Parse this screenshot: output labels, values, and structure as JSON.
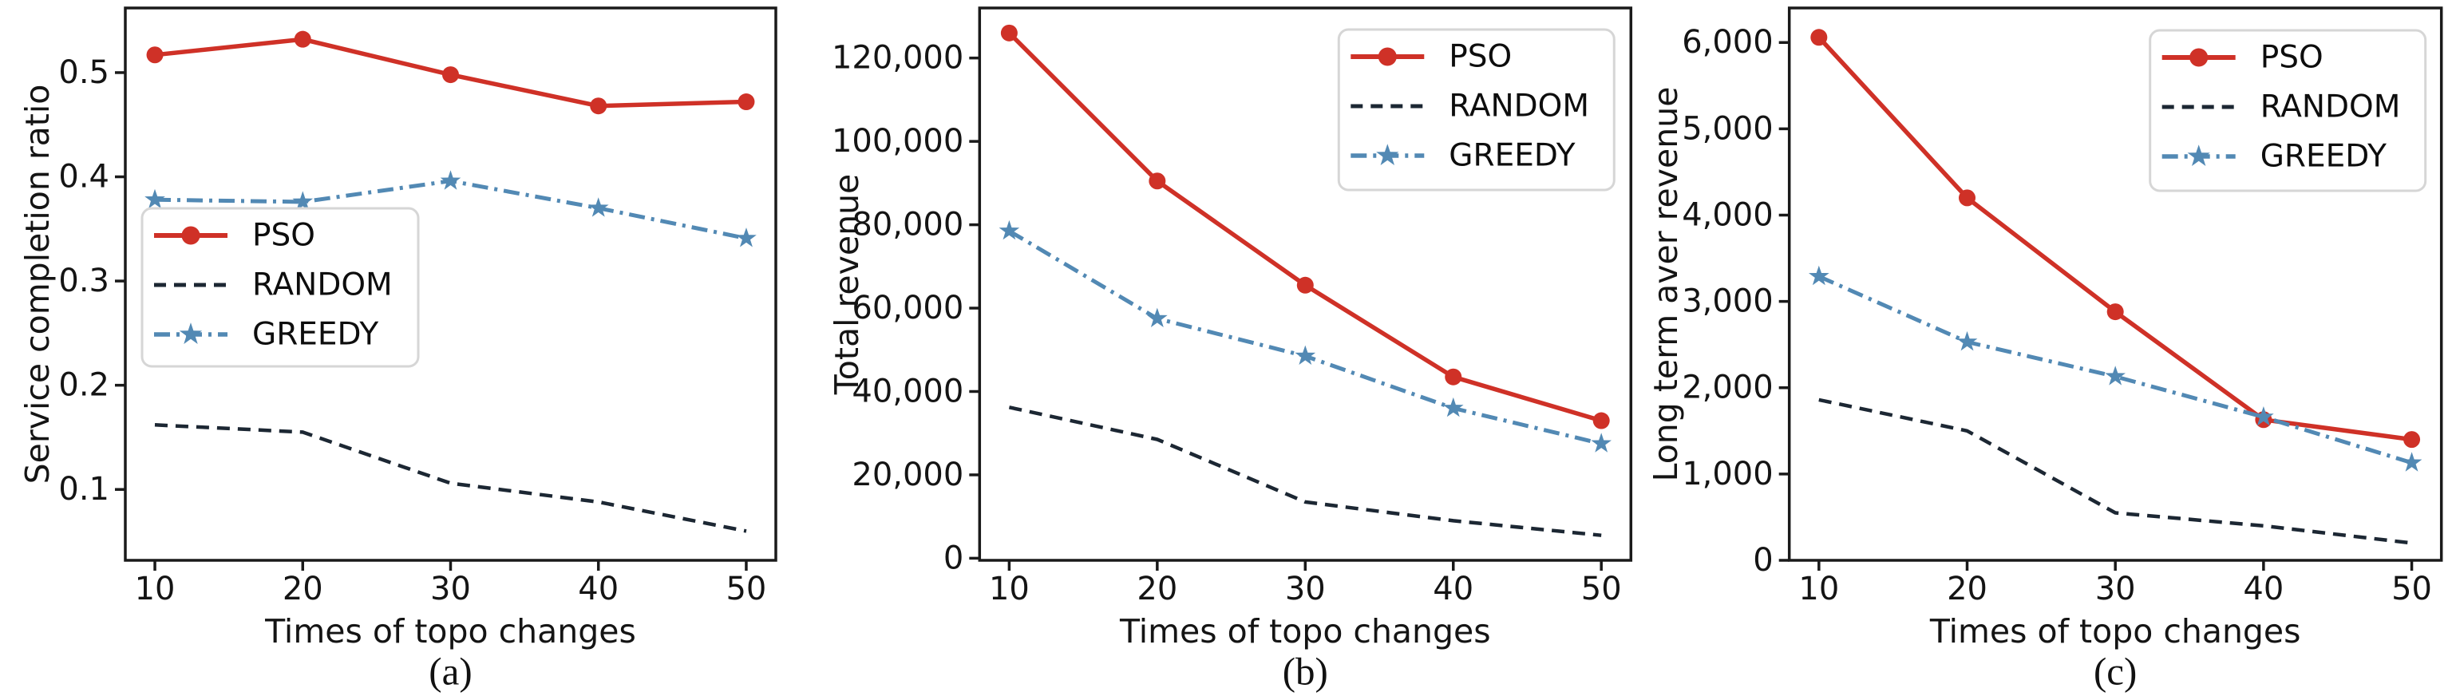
{
  "figure": {
    "xlabel": "Times of topo changes",
    "series_names": [
      "PSO",
      "RANDOM",
      "GREEDY"
    ],
    "colors": {
      "pso": "#cf3127",
      "random": "#1c2733",
      "greedy": "#5289b4",
      "axis": "#1a1a1a",
      "text": "#141414",
      "legend_border": "#d6d6d6",
      "background": "#ffffff"
    }
  },
  "chart_data": [
    {
      "id": "a",
      "type": "line",
      "caption": "(a)",
      "xlabel": "Times of topo changes",
      "ylabel": "Service completion ratio",
      "x": [
        10,
        20,
        30,
        40,
        50
      ],
      "xtick_labels": [
        "10",
        "20",
        "30",
        "40",
        "50"
      ],
      "xlim": [
        8,
        52
      ],
      "ylim": [
        0.032,
        0.562
      ],
      "yticks": [
        0.1,
        0.2,
        0.3,
        0.4,
        0.5
      ],
      "ytick_labels": [
        "0.1",
        "0.2",
        "0.3",
        "0.4",
        "0.5"
      ],
      "grid": false,
      "legend_position": "center-left",
      "series": [
        {
          "name": "PSO",
          "color": "pso",
          "line": "solid",
          "marker": "circle",
          "values": [
            0.517,
            0.532,
            0.498,
            0.468,
            0.472
          ]
        },
        {
          "name": "RANDOM",
          "color": "random",
          "line": "dashed",
          "marker": "none",
          "values": [
            0.162,
            0.155,
            0.106,
            0.088,
            0.06
          ]
        },
        {
          "name": "GREEDY",
          "color": "greedy",
          "line": "dashdot",
          "marker": "star",
          "values": [
            0.378,
            0.376,
            0.396,
            0.37,
            0.341
          ]
        }
      ]
    },
    {
      "id": "b",
      "type": "line",
      "caption": "(b)",
      "xlabel": "Times of topo changes",
      "ylabel": "Total revenue",
      "x": [
        10,
        20,
        30,
        40,
        50
      ],
      "xtick_labels": [
        "10",
        "20",
        "30",
        "40",
        "50"
      ],
      "xlim": [
        8,
        52
      ],
      "ylim": [
        -500,
        132000
      ],
      "yticks": [
        0,
        20000,
        40000,
        60000,
        80000,
        100000,
        120000
      ],
      "ytick_labels": [
        "0",
        "20,000",
        "40,000",
        "60,000",
        "80,000",
        "100,000",
        "120,000"
      ],
      "grid": false,
      "legend_position": "upper-right",
      "series": [
        {
          "name": "PSO",
          "color": "pso",
          "line": "solid",
          "marker": "circle",
          "values": [
            126000,
            90500,
            65500,
            43500,
            33000
          ]
        },
        {
          "name": "RANDOM",
          "color": "random",
          "line": "dashed",
          "marker": "none",
          "values": [
            36200,
            28500,
            13500,
            9000,
            5500
          ]
        },
        {
          "name": "GREEDY",
          "color": "greedy",
          "line": "dashdot",
          "marker": "star",
          "values": [
            78500,
            57500,
            48500,
            36000,
            27500
          ]
        }
      ]
    },
    {
      "id": "c",
      "type": "line",
      "caption": "(c)",
      "xlabel": "Times of topo changes",
      "ylabel": "Long term aver revenue",
      "x": [
        10,
        20,
        30,
        40,
        50
      ],
      "xtick_labels": [
        "10",
        "20",
        "30",
        "40",
        "50"
      ],
      "xlim": [
        8,
        52
      ],
      "ylim": [
        0,
        6400
      ],
      "yticks": [
        0,
        1000,
        2000,
        3000,
        4000,
        5000,
        6000
      ],
      "ytick_labels": [
        "0",
        "1,000",
        "2,000",
        "3,000",
        "4,000",
        "5,000",
        "6,000"
      ],
      "grid": false,
      "legend_position": "upper-right",
      "series": [
        {
          "name": "PSO",
          "color": "pso",
          "line": "solid",
          "marker": "circle",
          "values": [
            6060,
            4200,
            2880,
            1630,
            1400
          ]
        },
        {
          "name": "RANDOM",
          "color": "random",
          "line": "dashed",
          "marker": "none",
          "values": [
            1860,
            1500,
            550,
            400,
            200
          ]
        },
        {
          "name": "GREEDY",
          "color": "greedy",
          "line": "dashdot",
          "marker": "star",
          "values": [
            3290,
            2530,
            2130,
            1660,
            1130
          ]
        }
      ]
    }
  ]
}
